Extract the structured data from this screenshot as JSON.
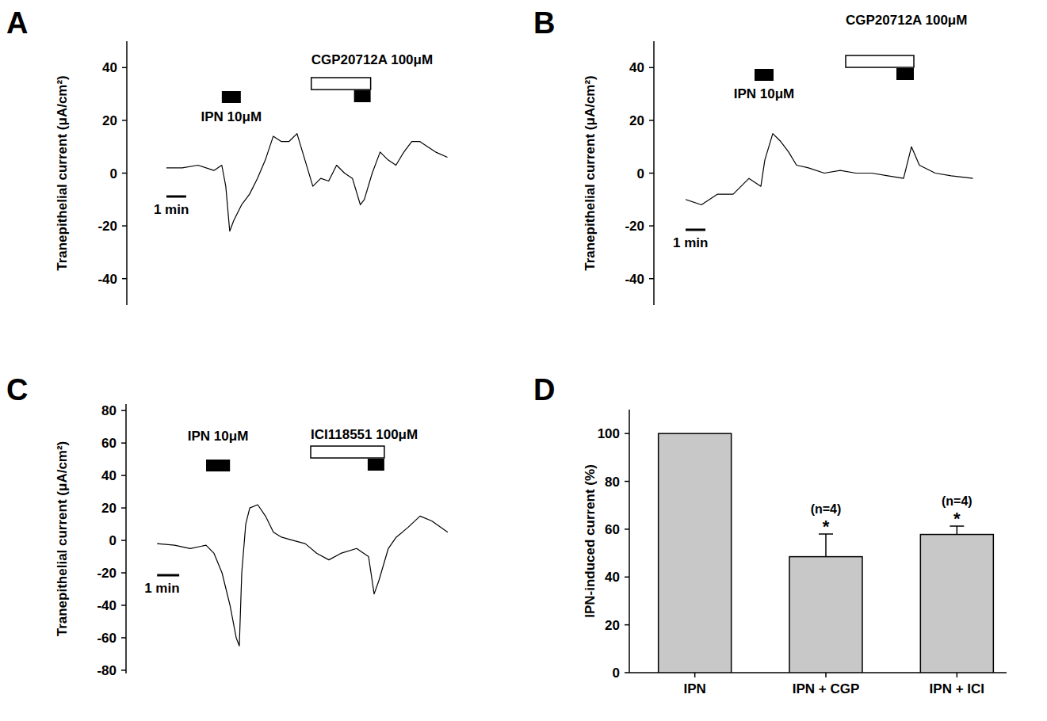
{
  "chart_data": [
    {
      "type": "line",
      "title": "A",
      "y_label": "Tranepithelial current (μA/cm²)",
      "color": "#000000",
      "tick_labels": "y",
      "xlim": [
        -2,
        14.5
      ],
      "ylim": [
        -50,
        50
      ],
      "yticks": [
        -40,
        -20,
        0,
        20,
        40
      ],
      "x": [
        0,
        0.8,
        1.6,
        2.4,
        2.8,
        3.0,
        3.2,
        3.4,
        3.8,
        4.2,
        4.6,
        5.0,
        5.4,
        5.8,
        6.2,
        6.6,
        7.0,
        7.4,
        7.8,
        8.2,
        8.6,
        9.0,
        9.4,
        9.8,
        10.0,
        10.4,
        10.8,
        11.2,
        11.6,
        12.0,
        12.4,
        12.8,
        13.2,
        13.6,
        14.2
      ],
      "values": [
        2,
        2,
        3,
        1,
        3,
        -5,
        -22,
        -18,
        -12,
        -8,
        -2,
        5,
        14,
        12,
        12,
        15,
        5,
        -5,
        -2,
        -3,
        3,
        0,
        -2,
        -12,
        -10,
        0,
        8,
        5,
        3,
        8,
        12,
        12,
        10,
        8,
        6
      ],
      "applications": [
        {
          "label": "IPN 10μM",
          "periods": [
            [
              2.8,
              3.76
            ],
            [
              9.48,
              10.32
            ]
          ]
        },
        {
          "label": "CGP20712A 100μM",
          "periods": [
            [
              7.32,
              10.32
            ]
          ]
        }
      ],
      "scale_bar": {
        "label": "1 min",
        "length": 1
      }
    },
    {
      "type": "line",
      "title": "B",
      "y_label": "Tranepithelial current (μA/cm²)",
      "color": "#000000",
      "tick_labels": "y",
      "xlim": [
        -1.6,
        15
      ],
      "ylim": [
        -50,
        50
      ],
      "yticks": [
        -40,
        -20,
        0,
        20,
        40
      ],
      "x": [
        0,
        0.8,
        1.6,
        2.4,
        3.2,
        3.8,
        4.0,
        4.4,
        4.8,
        5.2,
        5.6,
        6.2,
        7.0,
        7.8,
        8.6,
        9.4,
        10.2,
        11.0,
        11.4,
        11.8,
        12.6,
        13.4,
        14.5
      ],
      "values": [
        -10,
        -12,
        -8,
        -8,
        -2,
        -5,
        5,
        15,
        12,
        8,
        3,
        2,
        0,
        1,
        0,
        0,
        -1,
        -2,
        10,
        3,
        0,
        -1,
        -2
      ],
      "applications": [
        {
          "label": "IPN 10μM",
          "periods": [
            [
              3.48,
              4.44
            ],
            [
              10.64,
              11.52
            ]
          ]
        },
        {
          "label": "CGP20712A 100μM",
          "periods": [
            [
              8.08,
              11.52
            ]
          ]
        }
      ],
      "scale_bar": {
        "label": "1 min",
        "length": 1
      }
    },
    {
      "type": "line",
      "title": "C",
      "y_label": "Tranepithelial current (μA/cm²)",
      "color": "#000000",
      "tick_labels": "y",
      "xlim": [
        -1.4,
        13.4
      ],
      "ylim": [
        -82,
        84
      ],
      "yticks": [
        -80,
        -60,
        -40,
        -20,
        0,
        20,
        40,
        60,
        80
      ],
      "x": [
        0,
        0.79,
        1.5,
        2.21,
        2.57,
        2.93,
        3.29,
        3.57,
        3.71,
        3.82,
        4.0,
        4.18,
        4.54,
        4.89,
        5.25,
        5.61,
        6.14,
        6.68,
        7.21,
        7.75,
        8.29,
        9.0,
        9.54,
        9.79,
        10.0,
        10.43,
        10.79,
        11.32,
        11.86,
        12.39,
        13.11
      ],
      "values": [
        -2,
        -3,
        -5,
        -3,
        -8,
        -20,
        -40,
        -60,
        -65,
        -20,
        10,
        20,
        22,
        15,
        5,
        2,
        0,
        -2,
        -8,
        -12,
        -8,
        -5,
        -10,
        -33,
        -25,
        -5,
        2,
        8,
        15,
        12,
        5
      ],
      "applications": [
        {
          "label": "IPN 10μM",
          "periods": [
            [
              2.21,
              3.29
            ],
            [
              9.5,
              10.25
            ]
          ]
        },
        {
          "label": "ICI118551 100μM",
          "periods": [
            [
              6.93,
              10.25
            ]
          ]
        }
      ],
      "scale_bar": {
        "label": "1 min",
        "length": 1
      }
    },
    {
      "type": "bar",
      "title": "D",
      "y_label": "IPN-induced current (%)",
      "color": "#c8c8c8",
      "categories": [
        "IPN",
        "IPN + CGP",
        "IPN + ICI"
      ],
      "values": [
        100,
        48.5,
        57.8
      ],
      "errors": [
        null,
        9.5,
        3.5
      ],
      "n_labels": [
        null,
        "(n=4)",
        "(n=4)"
      ],
      "significance": [
        null,
        "*",
        "*"
      ],
      "ylim": [
        0,
        110
      ],
      "yticks": [
        0,
        20,
        40,
        60,
        80,
        100
      ]
    }
  ]
}
